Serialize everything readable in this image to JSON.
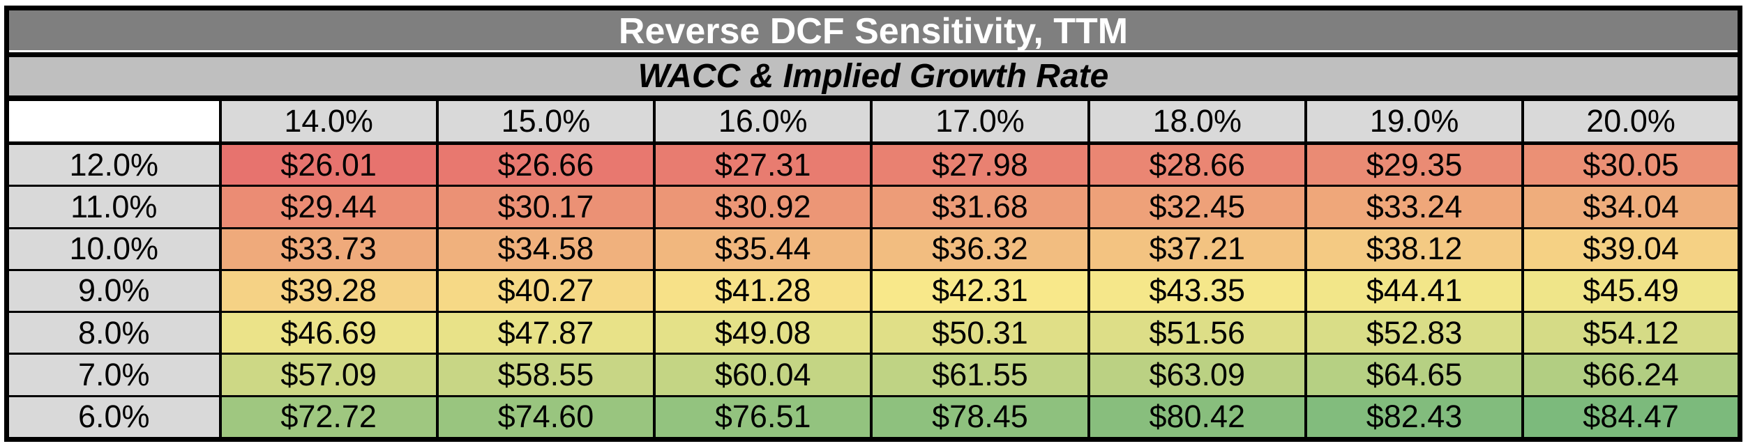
{
  "page": {
    "background": "#FFFFFF"
  },
  "chart_data": {
    "type": "heatmap",
    "title": "Reverse DCF Sensitivity, TTM",
    "subtitle": "WACC & Implied Growth Rate",
    "col_headers": [
      "14.0%",
      "15.0%",
      "16.0%",
      "17.0%",
      "18.0%",
      "19.0%",
      "20.0%"
    ],
    "row_headers": [
      "12.0%",
      "11.0%",
      "10.0%",
      "9.0%",
      "8.0%",
      "7.0%",
      "6.0%"
    ],
    "highlight_col_index": 3,
    "highlight_row_index": 3,
    "value_prefix": "$",
    "rows": [
      [
        26.01,
        26.66,
        27.31,
        27.98,
        28.66,
        29.35,
        30.05
      ],
      [
        29.44,
        30.17,
        30.92,
        31.68,
        32.45,
        33.24,
        34.04
      ],
      [
        33.73,
        34.58,
        35.44,
        36.32,
        37.21,
        38.12,
        39.04
      ],
      [
        39.28,
        40.27,
        41.28,
        42.31,
        43.35,
        44.41,
        45.49
      ],
      [
        46.69,
        47.87,
        49.08,
        50.31,
        51.56,
        52.83,
        54.12
      ],
      [
        57.09,
        58.55,
        60.04,
        61.55,
        63.09,
        64.65,
        66.24
      ],
      [
        72.72,
        74.6,
        76.51,
        78.45,
        80.42,
        82.43,
        84.47
      ]
    ],
    "color_scale": {
      "min_value": 26.01,
      "mid_value": 42.31,
      "max_value": 84.47,
      "min_color": "#E7736E",
      "mid_color": "#F8E88A",
      "max_color": "#7CBA7C"
    },
    "legend_position": "none",
    "grid": true
  },
  "colors": {
    "title_bg": "#7F7F7F",
    "title_text": "#FFFFFF",
    "subtitle_bg": "#BFBFBF",
    "subtitle_text": "#000000",
    "header_bg": "#D9D9D9",
    "highlight_text": "#0000EE",
    "cell_text": "#000000",
    "border": "#000000"
  }
}
